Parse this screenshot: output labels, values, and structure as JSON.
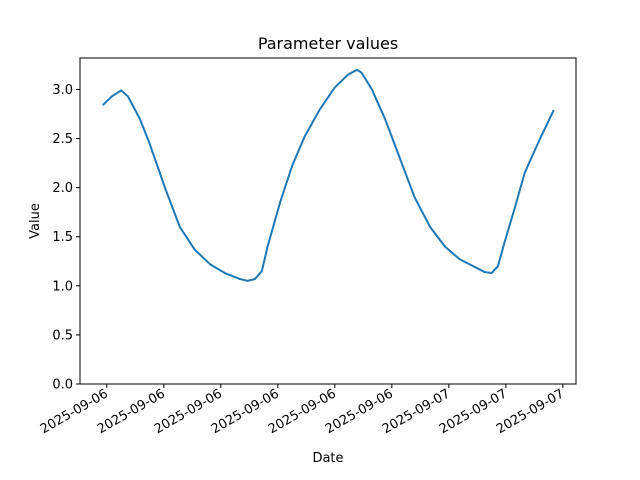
{
  "chart_data": {
    "type": "line",
    "title": "Parameter values",
    "xlabel": "Date",
    "ylabel": "Value",
    "x": [
      -0.07,
      0.09,
      0.25,
      0.37,
      0.58,
      0.75,
      1.02,
      1.28,
      1.54,
      1.81,
      2.07,
      2.33,
      2.47,
      2.6,
      2.72,
      2.82,
      3.04,
      3.25,
      3.47,
      3.74,
      4.0,
      4.23,
      4.39,
      4.47,
      4.65,
      4.88,
      5.14,
      5.4,
      5.67,
      5.93,
      6.19,
      6.46,
      6.63,
      6.75,
      6.86,
      6.98,
      7.16,
      7.33,
      7.6,
      7.84
    ],
    "series": [
      {
        "name": "Value",
        "color": "#1f77b4",
        "values": [
          2.84,
          2.93,
          2.99,
          2.93,
          2.7,
          2.45,
          2.0,
          1.6,
          1.37,
          1.22,
          1.13,
          1.07,
          1.05,
          1.07,
          1.15,
          1.4,
          1.85,
          2.22,
          2.52,
          2.8,
          3.02,
          3.15,
          3.2,
          3.17,
          3.0,
          2.7,
          2.3,
          1.9,
          1.6,
          1.4,
          1.27,
          1.19,
          1.14,
          1.13,
          1.2,
          1.45,
          1.8,
          2.15,
          2.5,
          2.79
        ]
      }
    ],
    "xlim": [
      -0.47,
      8.23
    ],
    "xticks": [
      {
        "value": 0,
        "label": "2025-09-06"
      },
      {
        "value": 1,
        "label": "2025-09-06"
      },
      {
        "value": 2,
        "label": "2025-09-06"
      },
      {
        "value": 3,
        "label": "2025-09-06"
      },
      {
        "value": 4,
        "label": "2025-09-06"
      },
      {
        "value": 5,
        "label": "2025-09-06"
      },
      {
        "value": 6,
        "label": "2025-09-07"
      },
      {
        "value": 7,
        "label": "2025-09-07"
      },
      {
        "value": 8,
        "label": "2025-09-07"
      }
    ],
    "ylim": [
      0,
      3.32
    ],
    "yticks": [
      {
        "value": 0,
        "label": "0.0"
      },
      {
        "value": 0.5,
        "label": "0.5"
      },
      {
        "value": 1,
        "label": "1.0"
      },
      {
        "value": 1.5,
        "label": "1.5"
      },
      {
        "value": 2,
        "label": "2.0"
      },
      {
        "value": 2.5,
        "label": "2.5"
      },
      {
        "value": 3,
        "label": "3.0"
      }
    ],
    "grid": false
  }
}
